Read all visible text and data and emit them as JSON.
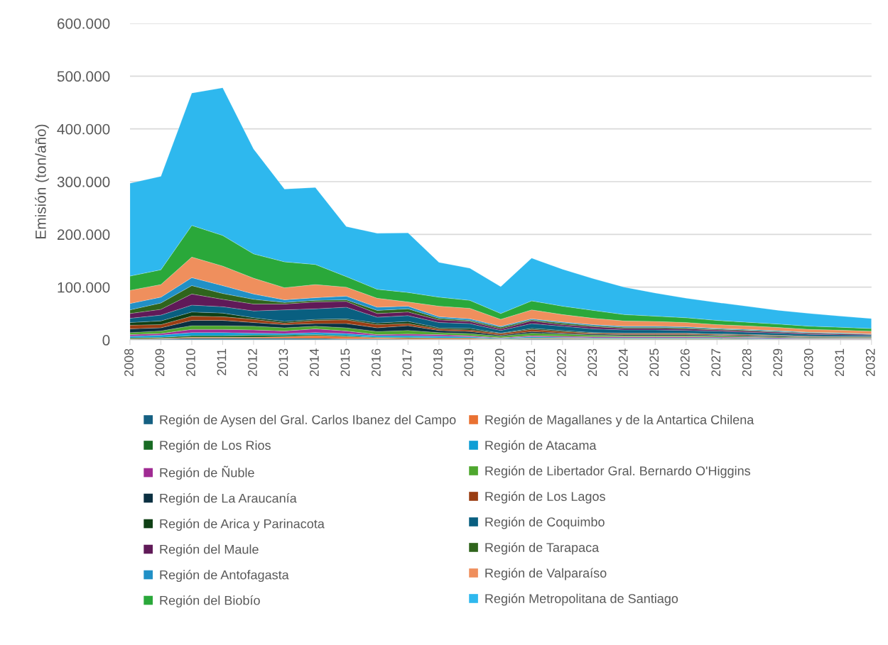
{
  "chart_data": {
    "type": "area",
    "stacked": true,
    "ylabel": "Emisión (ton/año)",
    "categories": [
      "2008",
      "2009",
      "2010",
      "2011",
      "2012",
      "2013",
      "2014",
      "2015",
      "2016",
      "2017",
      "2018",
      "2019",
      "2020",
      "2021",
      "2022",
      "2023",
      "2024",
      "2025",
      "2026",
      "2027",
      "2028",
      "2029",
      "2030",
      "2031",
      "2032"
    ],
    "ylim": [
      0,
      600000
    ],
    "yticks": [
      {
        "value": 0,
        "label": "0"
      },
      {
        "value": 100000,
        "label": "100.000"
      },
      {
        "value": 200000,
        "label": "200.000"
      },
      {
        "value": 300000,
        "label": "300.000"
      },
      {
        "value": 400000,
        "label": "400.000"
      },
      {
        "value": 500000,
        "label": "500.000"
      },
      {
        "value": 600000,
        "label": "600.000"
      }
    ],
    "grid": "y",
    "legend": "bottom",
    "series": [
      {
        "name": "Región de Aysen del Gral. Carlos Ibanez del Campo",
        "color": "#156082",
        "values": [
          1000,
          2000,
          3000,
          3000,
          3000,
          3000,
          3000,
          2000,
          2000,
          1000,
          1000,
          1000,
          500,
          2000,
          2000,
          1000,
          1000,
          1000,
          1000,
          1000,
          1000,
          500,
          500,
          500,
          500
        ]
      },
      {
        "name": "Región de Magallanes y de la Antartica Chilena",
        "color": "#e97132",
        "values": [
          1000,
          1000,
          2000,
          2000,
          2000,
          3000,
          5000,
          4000,
          2000,
          2000,
          2000,
          2000,
          500,
          1000,
          1000,
          1000,
          1000,
          1000,
          1000,
          1000,
          500,
          500,
          500,
          500,
          500
        ]
      },
      {
        "name": "Región de Los Rios",
        "color": "#196b24",
        "values": [
          2000,
          2000,
          3000,
          3000,
          4000,
          3000,
          2000,
          2000,
          1000,
          2000,
          1000,
          1000,
          1000,
          1000,
          1000,
          1000,
          1000,
          1000,
          1000,
          1000,
          1000,
          500,
          500,
          500,
          500
        ]
      },
      {
        "name": "Región de Atacama",
        "color": "#0f9ed5",
        "values": [
          3000,
          4000,
          6000,
          6000,
          4000,
          3000,
          4000,
          4000,
          3000,
          3000,
          3000,
          2000,
          1000,
          2000,
          1000,
          1000,
          1000,
          1000,
          1000,
          1000,
          1000,
          1000,
          500,
          500,
          500
        ]
      },
      {
        "name": "Región de Ñuble",
        "color": "#a02b93",
        "values": [
          3000,
          3000,
          6000,
          6000,
          6000,
          5000,
          7000,
          5000,
          2000,
          3000,
          3000,
          2000,
          1000,
          2000,
          2000,
          2000,
          2000,
          2000,
          2000,
          1500,
          1500,
          1500,
          1000,
          1000,
          1000
        ]
      },
      {
        "name": "Región de Libertador Gral. Bernardo O'Higgins",
        "color": "#4ea72e",
        "values": [
          4000,
          5000,
          7000,
          7000,
          7000,
          6000,
          5000,
          6000,
          6000,
          7000,
          4000,
          4000,
          3000,
          5000,
          4000,
          3000,
          2000,
          2000,
          2000,
          2000,
          1500,
          1500,
          1500,
          1000,
          1000
        ]
      },
      {
        "name": "Región de La Araucanía",
        "color": "#0b3041",
        "values": [
          7000,
          6000,
          10000,
          10000,
          7000,
          6000,
          5000,
          8000,
          7000,
          9000,
          4000,
          4000,
          2000,
          3000,
          2000,
          2000,
          2000,
          2000,
          2000,
          1500,
          1500,
          1500,
          1000,
          1000,
          1000
        ]
      },
      {
        "name": "Región de Los Lagos",
        "color": "#9a3d12",
        "values": [
          7000,
          6000,
          8000,
          7000,
          6000,
          3000,
          6000,
          7000,
          6000,
          4000,
          3000,
          3000,
          3000,
          4000,
          3000,
          2000,
          2000,
          2000,
          2000,
          1500,
          1500,
          1000,
          1000,
          1000,
          1000
        ]
      },
      {
        "name": "Región de Arica y Parinacota",
        "color": "#0f4015",
        "values": [
          5000,
          7000,
          8000,
          7000,
          3000,
          3000,
          2000,
          2000,
          3000,
          4000,
          2000,
          3000,
          1000,
          2000,
          2000,
          1000,
          1000,
          1000,
          1000,
          1000,
          1000,
          1000,
          500,
          500,
          500
        ]
      },
      {
        "name": "Región de Coquimbo",
        "color": "#095f80",
        "values": [
          8000,
          11000,
          13000,
          12000,
          13000,
          22000,
          20000,
          22000,
          11000,
          11000,
          10000,
          9000,
          5000,
          9000,
          8000,
          7000,
          6000,
          6000,
          5000,
          5000,
          4000,
          4000,
          3500,
          3000,
          2500
        ]
      },
      {
        "name": "Región del Maule",
        "color": "#601a58",
        "values": [
          9000,
          11000,
          21000,
          14000,
          13000,
          11000,
          13000,
          11000,
          7000,
          7000,
          5000,
          4000,
          3000,
          5000,
          3000,
          4000,
          3000,
          3000,
          3000,
          2500,
          2500,
          2000,
          2000,
          2000,
          1500
        ]
      },
      {
        "name": "Región de Tarapaca",
        "color": "#2f641c",
        "values": [
          7000,
          12000,
          16000,
          11000,
          9000,
          3000,
          3000,
          3000,
          6000,
          6000,
          3000,
          2000,
          3000,
          2000,
          3000,
          2000,
          2000,
          2000,
          2000,
          1500,
          1500,
          1000,
          1000,
          1000,
          500
        ]
      },
      {
        "name": "Región de Antofagasta",
        "color": "#2190c6",
        "values": [
          12000,
          11000,
          15000,
          15000,
          10000,
          5000,
          5000,
          7000,
          6000,
          5000,
          3000,
          3000,
          2000,
          2000,
          2000,
          2000,
          2000,
          2000,
          2000,
          1500,
          1500,
          1500,
          1000,
          1000,
          500
        ]
      },
      {
        "name": "Región de Valparaíso",
        "color": "#ef8f5d",
        "values": [
          25000,
          24000,
          39000,
          37000,
          30000,
          23000,
          25000,
          17000,
          17000,
          8000,
          20000,
          20000,
          13000,
          17000,
          14000,
          12000,
          10000,
          9000,
          8000,
          7000,
          6500,
          6000,
          5500,
          5000,
          5000
        ]
      },
      {
        "name": "Región del Biobío",
        "color": "#2aa83a",
        "values": [
          27000,
          28000,
          60000,
          58000,
          46000,
          49000,
          38000,
          20000,
          17000,
          18000,
          17000,
          15000,
          11000,
          17000,
          16000,
          15000,
          12000,
          10000,
          9000,
          8000,
          7000,
          6500,
          6000,
          5500,
          5000
        ]
      },
      {
        "name": "Región Metropolitana de Santiago",
        "color": "#2eb8ee",
        "values": [
          176000,
          177000,
          251000,
          280000,
          199000,
          138000,
          146000,
          95000,
          106000,
          113000,
          66000,
          61000,
          51000,
          81000,
          70000,
          60000,
          52000,
          44000,
          37000,
          34000,
          30000,
          26000,
          24000,
          21000,
          19000
        ]
      }
    ]
  }
}
